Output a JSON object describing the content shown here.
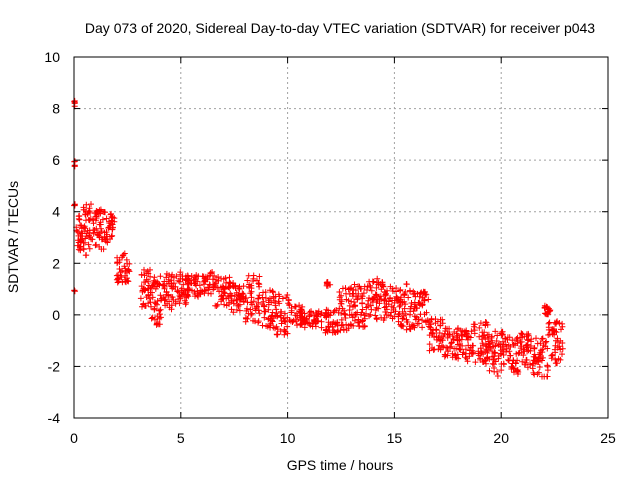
{
  "chart_data": {
    "type": "scatter",
    "title": "Day 073 of 2020, Sidereal Day-to-day VTEC variation (SDTVAR) for receiver p043",
    "xlabel": "GPS time / hours",
    "ylabel": "SDTVAR / TECUs",
    "xlim": [
      0,
      25
    ],
    "ylim": [
      -4,
      10
    ],
    "xticks": [
      "0",
      "5",
      "10",
      "15",
      "20",
      "25"
    ],
    "yticks": [
      "-4",
      "-2",
      "0",
      "2",
      "4",
      "6",
      "8",
      "10"
    ],
    "grid": true,
    "marker": "+",
    "series_color": "#ff0000",
    "clusters": [
      {
        "x0": 0.0,
        "x1": 0.05,
        "lo": 8.0,
        "hi": 8.3
      },
      {
        "x0": 0.0,
        "x1": 0.05,
        "lo": 5.7,
        "hi": 6.0
      },
      {
        "x0": 0.0,
        "x1": 0.05,
        "lo": 4.2,
        "hi": 4.3
      },
      {
        "x0": 0.0,
        "x1": 0.05,
        "lo": 0.9,
        "hi": 1.0
      },
      {
        "x0": 0.1,
        "x1": 0.4,
        "lo": 2.5,
        "hi": 3.9
      },
      {
        "x0": 0.4,
        "x1": 0.9,
        "lo": 2.3,
        "hi": 4.3
      },
      {
        "x0": 0.9,
        "x1": 1.4,
        "lo": 2.5,
        "hi": 4.1
      },
      {
        "x0": 1.4,
        "x1": 1.9,
        "lo": 2.8,
        "hi": 4.0
      },
      {
        "x0": 2.0,
        "x1": 2.6,
        "lo": 1.2,
        "hi": 2.4
      },
      {
        "x0": 3.1,
        "x1": 3.6,
        "lo": 0.3,
        "hi": 1.8
      },
      {
        "x0": 3.6,
        "x1": 4.1,
        "lo": -0.4,
        "hi": 1.5
      },
      {
        "x0": 4.1,
        "x1": 4.6,
        "lo": 0.2,
        "hi": 1.6
      },
      {
        "x0": 4.6,
        "x1": 5.3,
        "lo": 0.4,
        "hi": 1.7
      },
      {
        "x0": 5.3,
        "x1": 6.0,
        "lo": 0.7,
        "hi": 1.6
      },
      {
        "x0": 6.0,
        "x1": 6.6,
        "lo": 0.8,
        "hi": 1.7
      },
      {
        "x0": 6.6,
        "x1": 7.3,
        "lo": 0.3,
        "hi": 1.5
      },
      {
        "x0": 7.3,
        "x1": 8.0,
        "lo": 0.1,
        "hi": 1.3
      },
      {
        "x0": 8.0,
        "x1": 8.7,
        "lo": -0.4,
        "hi": 1.6
      },
      {
        "x0": 8.8,
        "x1": 9.4,
        "lo": -0.5,
        "hi": 1.0
      },
      {
        "x0": 9.4,
        "x1": 10.1,
        "lo": -0.8,
        "hi": 0.8
      },
      {
        "x0": 10.1,
        "x1": 10.8,
        "lo": -0.4,
        "hi": 0.4
      },
      {
        "x0": 10.8,
        "x1": 11.6,
        "lo": -0.5,
        "hi": 0.2
      },
      {
        "x0": 11.8,
        "x1": 12.0,
        "lo": 1.1,
        "hi": 1.3
      },
      {
        "x0": 11.7,
        "x1": 12.4,
        "lo": -0.7,
        "hi": 0.2
      },
      {
        "x0": 12.4,
        "x1": 13.1,
        "lo": -0.6,
        "hi": 1.1
      },
      {
        "x0": 13.1,
        "x1": 13.8,
        "lo": -0.5,
        "hi": 1.2
      },
      {
        "x0": 13.8,
        "x1": 14.5,
        "lo": -0.2,
        "hi": 1.5
      },
      {
        "x0": 14.5,
        "x1": 15.2,
        "lo": -0.4,
        "hi": 1.1
      },
      {
        "x0": 15.2,
        "x1": 15.9,
        "lo": -0.6,
        "hi": 1.2
      },
      {
        "x0": 15.9,
        "x1": 16.6,
        "lo": -0.5,
        "hi": 0.9
      },
      {
        "x0": 16.6,
        "x1": 17.3,
        "lo": -1.4,
        "hi": -0.1
      },
      {
        "x0": 17.3,
        "x1": 18.0,
        "lo": -1.7,
        "hi": -0.5
      },
      {
        "x0": 18.0,
        "x1": 18.7,
        "lo": -1.8,
        "hi": -0.6
      },
      {
        "x0": 18.7,
        "x1": 19.4,
        "lo": -2.0,
        "hi": -0.1
      },
      {
        "x0": 19.4,
        "x1": 20.1,
        "lo": -2.4,
        "hi": -0.6
      },
      {
        "x0": 20.1,
        "x1": 20.8,
        "lo": -2.3,
        "hi": -0.8
      },
      {
        "x0": 20.8,
        "x1": 21.5,
        "lo": -2.1,
        "hi": -0.7
      },
      {
        "x0": 21.5,
        "x1": 22.2,
        "lo": -2.4,
        "hi": -0.9
      },
      {
        "x0": 22.0,
        "x1": 22.3,
        "lo": 0.0,
        "hi": 0.4
      },
      {
        "x0": 22.2,
        "x1": 22.9,
        "lo": -1.9,
        "hi": -0.2
      }
    ]
  }
}
